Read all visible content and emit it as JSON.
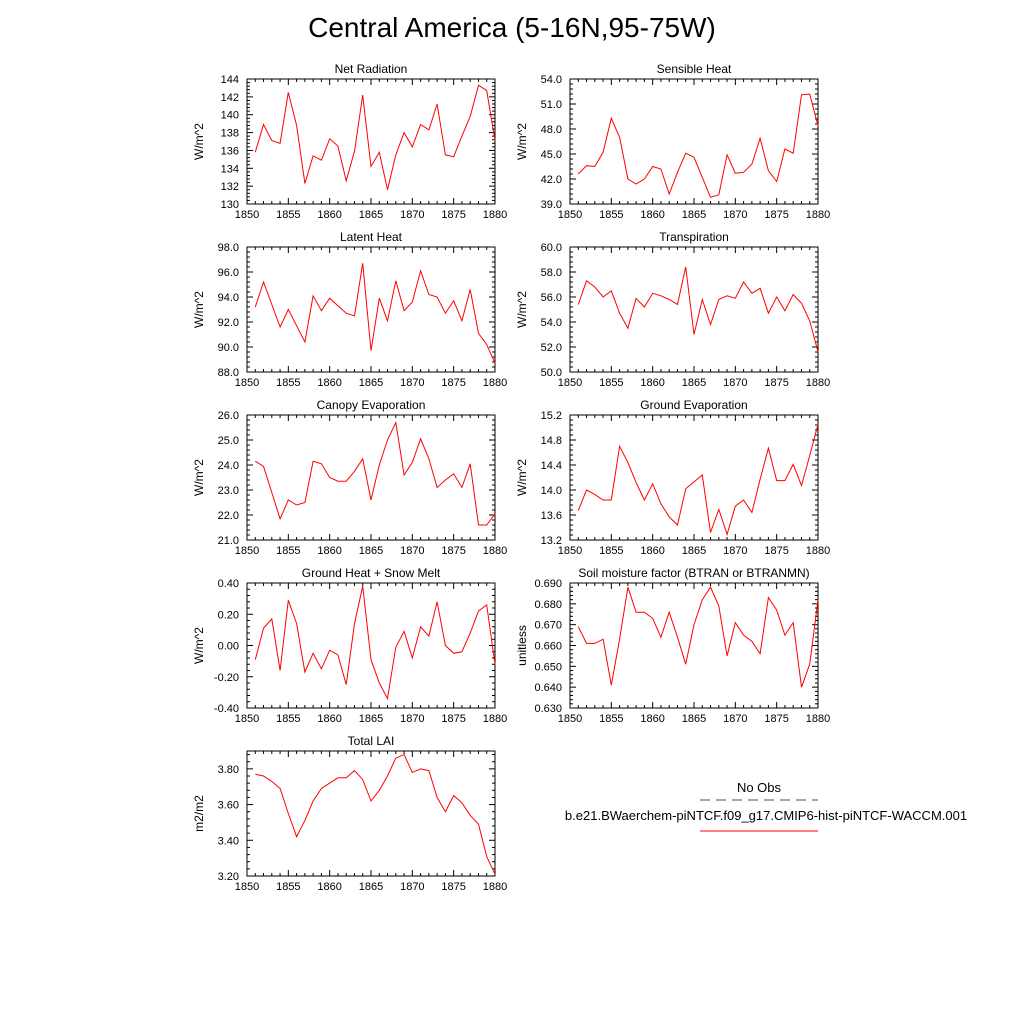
{
  "title": "Central America (5-16N,95-75W)",
  "series_color": "#ff0000",
  "legend": {
    "entries": [
      {
        "label": "No Obs",
        "style": "dashed",
        "color": "#555555"
      },
      {
        "label": "b.e21.BWaerchem-piNTCF.f09_g17.CMIP6-hist-piNTCF-WACCM.001",
        "style": "solid",
        "color": "#ff0000"
      }
    ]
  },
  "chart_data": [
    {
      "type": "line",
      "title": "Net Radiation",
      "ylabel": "W/m^2",
      "xlim": [
        1850,
        1880
      ],
      "ylim": [
        130,
        144
      ],
      "xticks": [
        "1850",
        "1855",
        "1860",
        "1865",
        "1870",
        "1875",
        "1880"
      ],
      "yticks": [
        "130",
        "132",
        "134",
        "136",
        "138",
        "140",
        "142",
        "144"
      ],
      "x": [
        1851,
        1852,
        1853,
        1854,
        1855,
        1856,
        1857,
        1858,
        1859,
        1860,
        1861,
        1862,
        1863,
        1864,
        1865,
        1866,
        1867,
        1868,
        1869,
        1870,
        1871,
        1872,
        1873,
        1874,
        1875,
        1876,
        1877,
        1878,
        1879,
        1880
      ],
      "values": [
        135.8,
        138.9,
        137.1,
        136.8,
        142.5,
        138.8,
        132.3,
        135.4,
        134.9,
        137.3,
        136.5,
        132.6,
        135.9,
        142.2,
        134.2,
        135.8,
        131.6,
        135.5,
        138.0,
        136.4,
        138.9,
        138.3,
        141.2,
        135.5,
        135.3,
        137.6,
        139.8,
        143.3,
        142.7,
        137.1
      ]
    },
    {
      "type": "line",
      "title": "Sensible Heat",
      "ylabel": "W/m^2",
      "xlim": [
        1850,
        1880
      ],
      "ylim": [
        39.0,
        54.0
      ],
      "xticks": [
        "1850",
        "1855",
        "1860",
        "1865",
        "1870",
        "1875",
        "1880"
      ],
      "yticks": [
        "39.0",
        "42.0",
        "45.0",
        "48.0",
        "51.0",
        "54.0"
      ],
      "x": [
        1851,
        1852,
        1853,
        1854,
        1855,
        1856,
        1857,
        1858,
        1859,
        1860,
        1861,
        1862,
        1863,
        1864,
        1865,
        1866,
        1867,
        1868,
        1869,
        1870,
        1871,
        1872,
        1873,
        1874,
        1875,
        1876,
        1877,
        1878,
        1879,
        1880
      ],
      "values": [
        42.6,
        43.6,
        43.5,
        45.2,
        49.3,
        47.0,
        42.0,
        41.4,
        42.0,
        43.5,
        43.2,
        40.2,
        42.8,
        45.1,
        44.6,
        42.2,
        39.8,
        40.1,
        44.9,
        42.7,
        42.8,
        43.8,
        46.9,
        43.0,
        41.7,
        45.6,
        45.1,
        52.1,
        52.2,
        48.4
      ]
    },
    {
      "type": "line",
      "title": "Latent Heat",
      "ylabel": "W/m^2",
      "xlim": [
        1850,
        1880
      ],
      "ylim": [
        88.0,
        98.0
      ],
      "xticks": [
        "1850",
        "1855",
        "1860",
        "1865",
        "1870",
        "1875",
        "1880"
      ],
      "yticks": [
        "88.0",
        "90.0",
        "92.0",
        "94.0",
        "96.0",
        "98.0"
      ],
      "x": [
        1851,
        1852,
        1853,
        1854,
        1855,
        1856,
        1857,
        1858,
        1859,
        1860,
        1861,
        1862,
        1863,
        1864,
        1865,
        1866,
        1867,
        1868,
        1869,
        1870,
        1871,
        1872,
        1873,
        1874,
        1875,
        1876,
        1877,
        1878,
        1879,
        1880
      ],
      "values": [
        93.2,
        95.2,
        93.4,
        91.6,
        93.0,
        91.7,
        90.4,
        94.1,
        92.9,
        93.9,
        93.3,
        92.7,
        92.5,
        96.7,
        89.7,
        93.9,
        92.1,
        95.3,
        92.9,
        93.6,
        96.1,
        94.2,
        94.0,
        92.7,
        93.7,
        92.1,
        94.6,
        91.1,
        90.2,
        88.7
      ]
    },
    {
      "type": "line",
      "title": "Transpiration",
      "ylabel": "W/m^2",
      "xlim": [
        1850,
        1880
      ],
      "ylim": [
        50.0,
        60.0
      ],
      "xticks": [
        "1850",
        "1855",
        "1860",
        "1865",
        "1870",
        "1875",
        "1880"
      ],
      "yticks": [
        "50.0",
        "52.0",
        "54.0",
        "56.0",
        "58.0",
        "60.0"
      ],
      "x": [
        1851,
        1852,
        1853,
        1854,
        1855,
        1856,
        1857,
        1858,
        1859,
        1860,
        1861,
        1862,
        1863,
        1864,
        1865,
        1866,
        1867,
        1868,
        1869,
        1870,
        1871,
        1872,
        1873,
        1874,
        1875,
        1876,
        1877,
        1878,
        1879,
        1880
      ],
      "values": [
        55.4,
        57.3,
        56.8,
        56.0,
        56.5,
        54.7,
        53.5,
        55.9,
        55.2,
        56.3,
        56.1,
        55.8,
        55.4,
        58.4,
        53.0,
        55.8,
        53.8,
        55.8,
        56.1,
        55.9,
        57.2,
        56.3,
        56.7,
        54.7,
        56.0,
        54.9,
        56.2,
        55.5,
        54.1,
        51.6
      ]
    },
    {
      "type": "line",
      "title": "Canopy Evaporation",
      "ylabel": "W/m^2",
      "xlim": [
        1850,
        1880
      ],
      "ylim": [
        21.0,
        26.0
      ],
      "xticks": [
        "1850",
        "1855",
        "1860",
        "1865",
        "1870",
        "1875",
        "1880"
      ],
      "yticks": [
        "21.0",
        "22.0",
        "23.0",
        "24.0",
        "25.0",
        "26.0"
      ],
      "x": [
        1851,
        1852,
        1853,
        1854,
        1855,
        1856,
        1857,
        1858,
        1859,
        1860,
        1861,
        1862,
        1863,
        1864,
        1865,
        1866,
        1867,
        1868,
        1869,
        1870,
        1871,
        1872,
        1873,
        1874,
        1875,
        1876,
        1877,
        1878,
        1879,
        1880
      ],
      "values": [
        24.15,
        23.95,
        22.9,
        21.85,
        22.6,
        22.4,
        22.5,
        24.15,
        24.05,
        23.5,
        23.35,
        23.35,
        23.75,
        24.25,
        22.6,
        24.0,
        25.0,
        25.7,
        23.6,
        24.1,
        25.05,
        24.25,
        23.1,
        23.4,
        23.65,
        23.1,
        24.05,
        21.6,
        21.6,
        22.05
      ]
    },
    {
      "type": "line",
      "title": "Ground Evaporation",
      "ylabel": "W/m^2",
      "xlim": [
        1850,
        1880
      ],
      "ylim": [
        13.2,
        15.2
      ],
      "xticks": [
        "1850",
        "1855",
        "1860",
        "1865",
        "1870",
        "1875",
        "1880"
      ],
      "yticks": [
        "13.2",
        "13.6",
        "14.0",
        "14.4",
        "14.8",
        "15.2"
      ],
      "x": [
        1851,
        1852,
        1853,
        1854,
        1855,
        1856,
        1857,
        1858,
        1859,
        1860,
        1861,
        1862,
        1863,
        1864,
        1865,
        1866,
        1867,
        1868,
        1869,
        1870,
        1871,
        1872,
        1873,
        1874,
        1875,
        1876,
        1877,
        1878,
        1879,
        1880
      ],
      "values": [
        13.67,
        14.0,
        13.93,
        13.84,
        13.84,
        14.7,
        14.44,
        14.12,
        13.84,
        14.1,
        13.78,
        13.57,
        13.44,
        14.02,
        14.13,
        14.24,
        13.32,
        13.69,
        13.29,
        13.74,
        13.84,
        13.64,
        14.17,
        14.67,
        14.15,
        14.15,
        14.41,
        14.07,
        14.55,
        15.05
      ]
    },
    {
      "type": "line",
      "title": "Ground Heat + Snow Melt",
      "ylabel": "W/m^2",
      "xlim": [
        1850,
        1880
      ],
      "ylim": [
        -0.4,
        0.4
      ],
      "xticks": [
        "1850",
        "1855",
        "1860",
        "1865",
        "1870",
        "1875",
        "1880"
      ],
      "yticks": [
        "-0.40",
        "-0.20",
        "0.00",
        "0.20",
        "0.40"
      ],
      "x": [
        1851,
        1852,
        1853,
        1854,
        1855,
        1856,
        1857,
        1858,
        1859,
        1860,
        1861,
        1862,
        1863,
        1864,
        1865,
        1866,
        1867,
        1868,
        1869,
        1870,
        1871,
        1872,
        1873,
        1874,
        1875,
        1876,
        1877,
        1878,
        1879,
        1880
      ],
      "values": [
        -0.09,
        0.11,
        0.17,
        -0.16,
        0.29,
        0.14,
        -0.17,
        -0.05,
        -0.15,
        -0.03,
        -0.06,
        -0.25,
        0.14,
        0.38,
        -0.09,
        -0.24,
        -0.34,
        -0.01,
        0.09,
        -0.08,
        0.12,
        0.06,
        0.28,
        0.0,
        -0.05,
        -0.04,
        0.08,
        0.22,
        0.26,
        -0.12
      ]
    },
    {
      "type": "line",
      "title": "Soil moisture factor (BTRAN or BTRANMN)",
      "ylabel": "unitless",
      "xlim": [
        1850,
        1880
      ],
      "ylim": [
        0.63,
        0.69
      ],
      "xticks": [
        "1850",
        "1855",
        "1860",
        "1865",
        "1870",
        "1875",
        "1880"
      ],
      "yticks": [
        "0.630",
        "0.640",
        "0.650",
        "0.660",
        "0.670",
        "0.680",
        "0.690"
      ],
      "x": [
        1851,
        1852,
        1853,
        1854,
        1855,
        1856,
        1857,
        1858,
        1859,
        1860,
        1861,
        1862,
        1863,
        1864,
        1865,
        1866,
        1867,
        1868,
        1869,
        1870,
        1871,
        1872,
        1873,
        1874,
        1875,
        1876,
        1877,
        1878,
        1879,
        1880
      ],
      "values": [
        0.669,
        0.661,
        0.661,
        0.663,
        0.641,
        0.663,
        0.688,
        0.676,
        0.676,
        0.673,
        0.664,
        0.676,
        0.664,
        0.651,
        0.67,
        0.682,
        0.688,
        0.679,
        0.655,
        0.671,
        0.665,
        0.662,
        0.656,
        0.683,
        0.677,
        0.665,
        0.671,
        0.64,
        0.651,
        0.682
      ]
    },
    {
      "type": "line",
      "title": "Total LAI",
      "ylabel": "m2/m2",
      "xlim": [
        1850,
        1880
      ],
      "ylim": [
        3.2,
        3.9
      ],
      "xticks": [
        "1850",
        "1855",
        "1860",
        "1865",
        "1870",
        "1875",
        "1880"
      ],
      "yticks": [
        "3.20",
        "3.40",
        "3.60",
        "3.80"
      ],
      "x": [
        1851,
        1852,
        1853,
        1854,
        1855,
        1856,
        1857,
        1858,
        1859,
        1860,
        1861,
        1862,
        1863,
        1864,
        1865,
        1866,
        1867,
        1868,
        1869,
        1870,
        1871,
        1872,
        1873,
        1874,
        1875,
        1876,
        1877,
        1878,
        1879,
        1880
      ],
      "values": [
        3.77,
        3.76,
        3.73,
        3.69,
        3.55,
        3.42,
        3.51,
        3.62,
        3.69,
        3.72,
        3.75,
        3.75,
        3.79,
        3.74,
        3.62,
        3.68,
        3.76,
        3.86,
        3.88,
        3.78,
        3.8,
        3.79,
        3.64,
        3.56,
        3.65,
        3.61,
        3.54,
        3.49,
        3.31,
        3.21
      ]
    }
  ]
}
